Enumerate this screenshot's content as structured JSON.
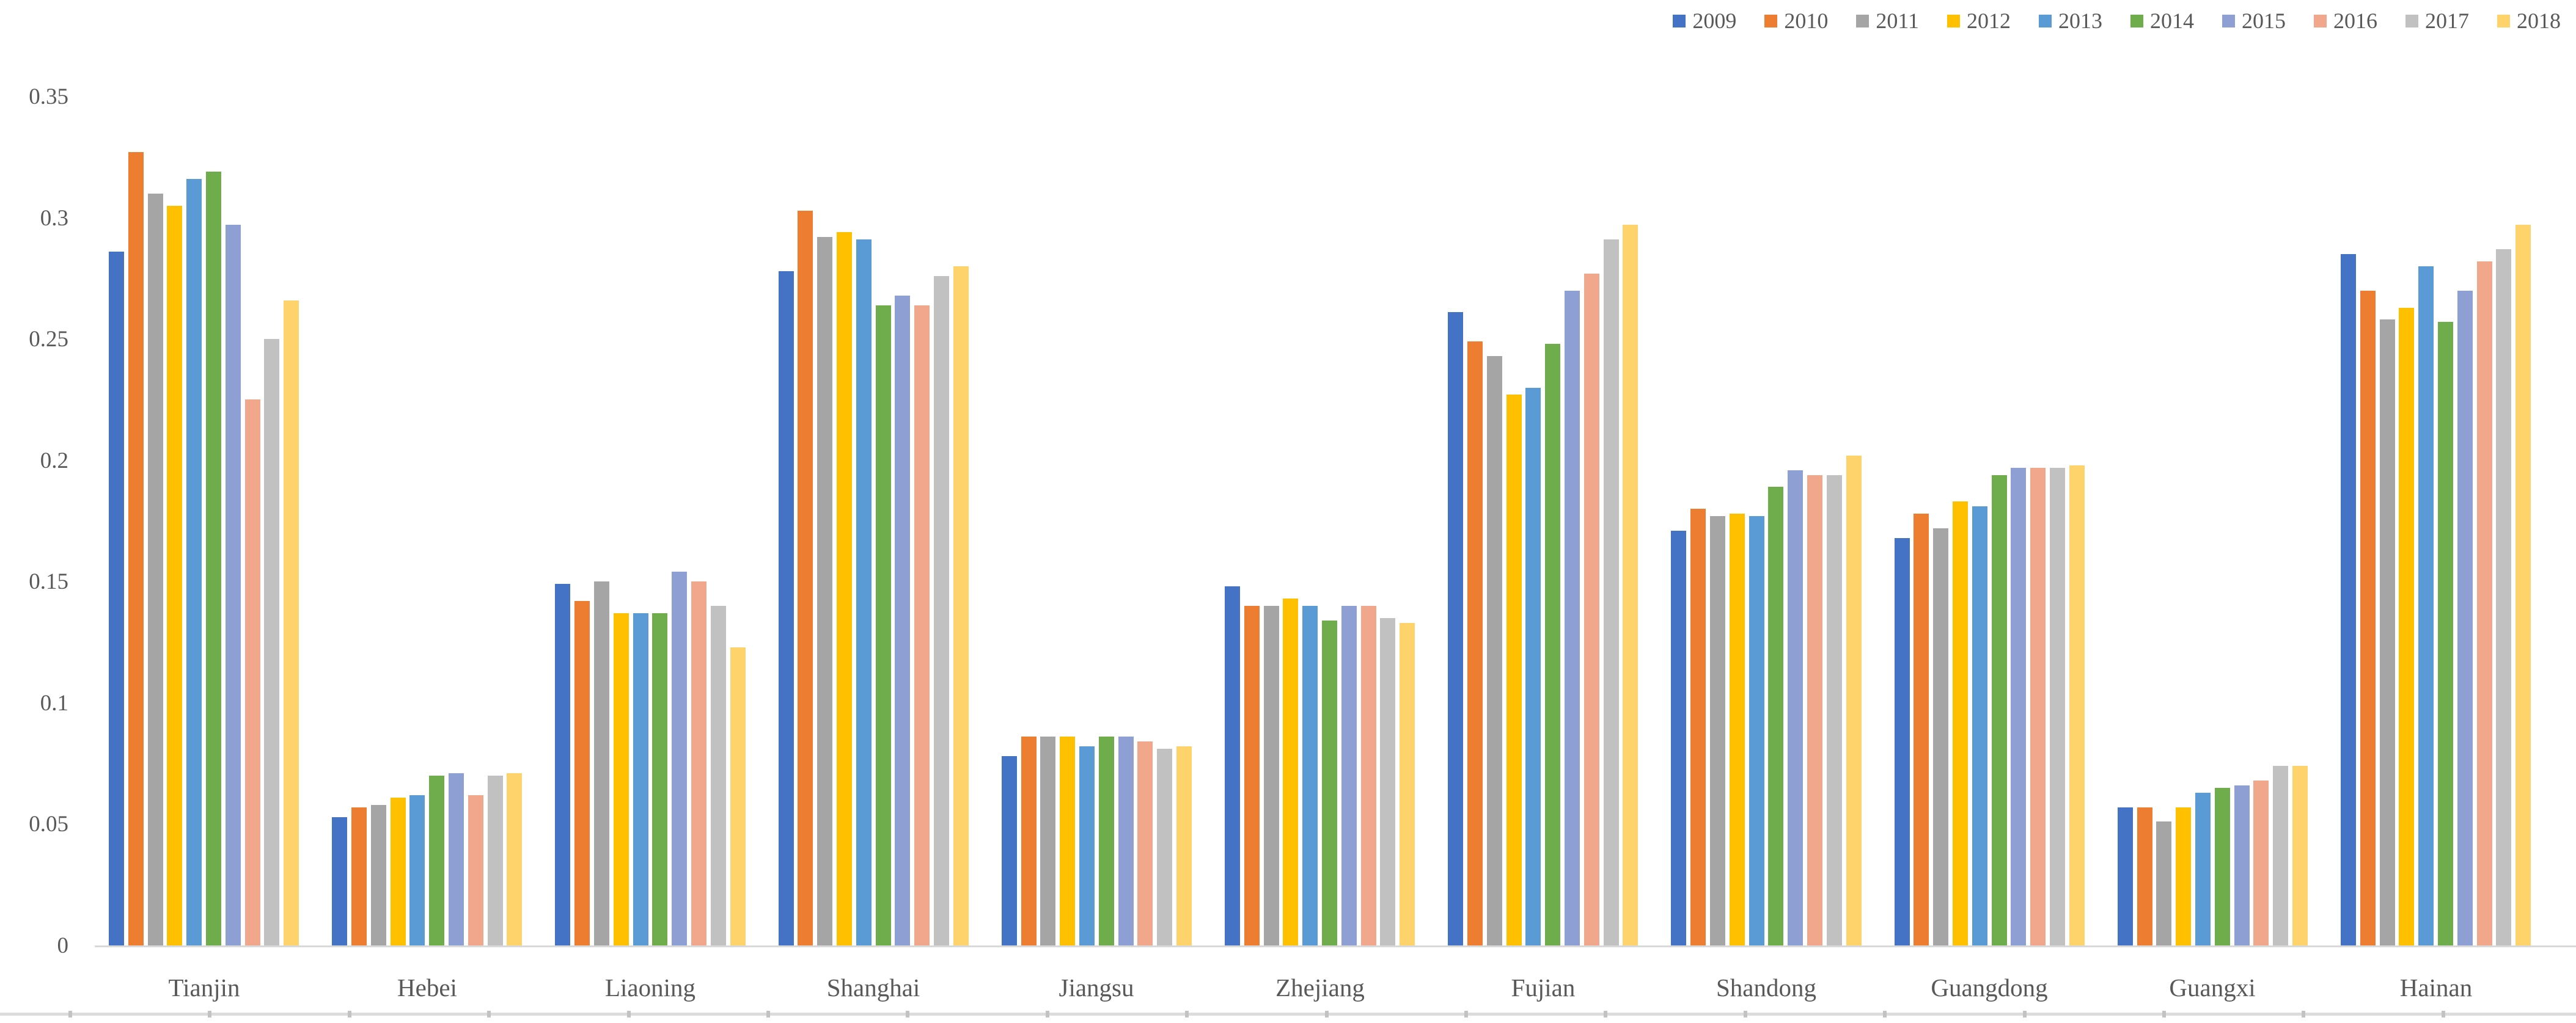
{
  "chart_data": {
    "type": "bar",
    "title": "",
    "xlabel": "",
    "ylabel": "",
    "grid": false,
    "legend_position": "top-right",
    "y_axis": {
      "min": 0,
      "max": 0.35,
      "step": 0.05,
      "tick_labels": [
        "0",
        "0.05",
        "0.1",
        "0.15",
        "0.2",
        "0.25",
        "0.3",
        "0.35"
      ]
    },
    "categories": [
      "Tianjin",
      "Hebei",
      "Liaoning",
      "Shanghai",
      "Jiangsu",
      "Zhejiang",
      "Fujian",
      "Shandong",
      "Guangdong",
      "Guangxi",
      "Hainan"
    ],
    "series": [
      {
        "name": "2009",
        "color": "#4472C4",
        "values": [
          0.286,
          0.053,
          0.149,
          0.278,
          0.078,
          0.148,
          0.261,
          0.171,
          0.168,
          0.057,
          0.285
        ]
      },
      {
        "name": "2010",
        "color": "#ED7D31",
        "values": [
          0.327,
          0.057,
          0.142,
          0.303,
          0.086,
          0.14,
          0.249,
          0.18,
          0.178,
          0.057,
          0.27
        ]
      },
      {
        "name": "2011",
        "color": "#A5A5A5",
        "values": [
          0.31,
          0.058,
          0.15,
          0.292,
          0.086,
          0.14,
          0.243,
          0.177,
          0.172,
          0.051,
          0.258
        ]
      },
      {
        "name": "2012",
        "color": "#FFC000",
        "values": [
          0.305,
          0.061,
          0.137,
          0.294,
          0.086,
          0.143,
          0.227,
          0.178,
          0.183,
          0.057,
          0.263
        ]
      },
      {
        "name": "2013",
        "color": "#5B9BD5",
        "values": [
          0.316,
          0.062,
          0.137,
          0.291,
          0.082,
          0.14,
          0.23,
          0.177,
          0.181,
          0.063,
          0.28
        ]
      },
      {
        "name": "2014",
        "color": "#6FAC4B",
        "values": [
          0.319,
          0.07,
          0.137,
          0.264,
          0.086,
          0.134,
          0.248,
          0.189,
          0.194,
          0.065,
          0.257
        ]
      },
      {
        "name": "2015",
        "color": "#8E9FD3",
        "values": [
          0.297,
          0.071,
          0.154,
          0.268,
          0.086,
          0.14,
          0.27,
          0.196,
          0.197,
          0.066,
          0.27
        ]
      },
      {
        "name": "2016",
        "color": "#F0A78C",
        "values": [
          0.225,
          0.062,
          0.15,
          0.264,
          0.084,
          0.14,
          0.277,
          0.194,
          0.197,
          0.068,
          0.282
        ]
      },
      {
        "name": "2017",
        "color": "#C1C1C1",
        "values": [
          0.25,
          0.07,
          0.14,
          0.276,
          0.081,
          0.135,
          0.291,
          0.194,
          0.197,
          0.074,
          0.287
        ]
      },
      {
        "name": "2018",
        "color": "#FFD36B",
        "values": [
          0.266,
          0.071,
          0.123,
          0.28,
          0.082,
          0.133,
          0.297,
          0.202,
          0.198,
          0.074,
          0.297
        ]
      }
    ],
    "colors": {
      "axis_line": "#d9d9d9",
      "tick_text": "#595959",
      "background": "#ffffff"
    }
  }
}
